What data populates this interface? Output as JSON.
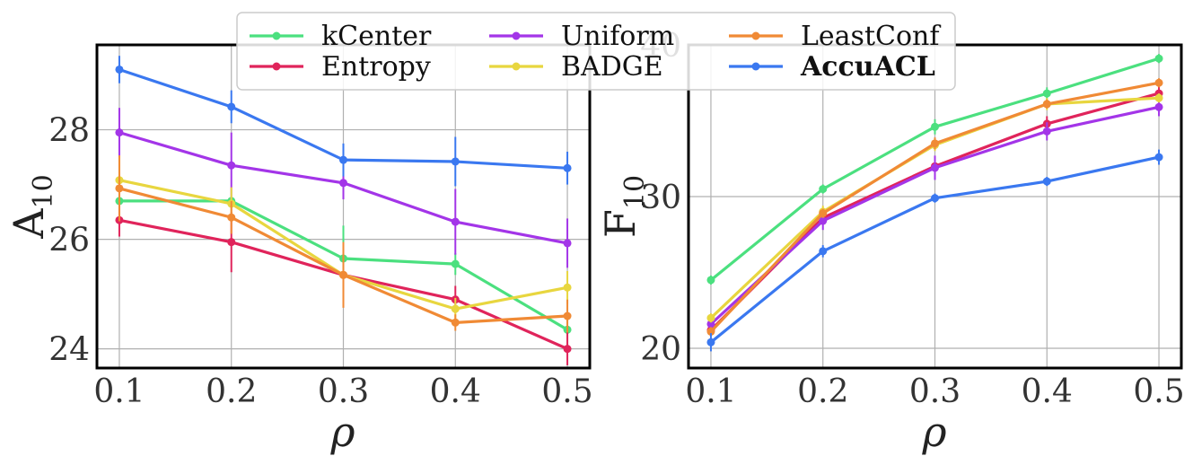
{
  "legend": {
    "entries": [
      {
        "name": "kCenter",
        "color": "#4be07f",
        "bold": false
      },
      {
        "name": "Entropy",
        "color": "#e0245b",
        "bold": false
      },
      {
        "name": "Uniform",
        "color": "#a335e8",
        "bold": false
      },
      {
        "name": "BADGE",
        "color": "#e8d63f",
        "bold": false
      },
      {
        "name": "LeastConf",
        "color": "#f08a35",
        "bold": false
      },
      {
        "name": "AccuACL",
        "color": "#3a78f0",
        "bold": true
      }
    ]
  },
  "chart_data": [
    {
      "type": "line",
      "title": "",
      "ylabel_main": "A",
      "ylabel_sub": "10",
      "xlabel": "ρ",
      "x": [
        0.1,
        0.2,
        0.3,
        0.4,
        0.5
      ],
      "x_tick_labels": [
        "0.1",
        "0.2",
        "0.3",
        "0.4",
        "0.5"
      ],
      "xlim": [
        0.08,
        0.52
      ],
      "ylim": [
        23.65,
        29.55
      ],
      "y_ticks": [
        24,
        26,
        28
      ],
      "y_tick_labels": [
        "24",
        "26",
        "28"
      ],
      "grid": true,
      "series": [
        {
          "name": "kCenter",
          "color": "#4be07f",
          "values": [
            26.7,
            26.7,
            25.65,
            25.55,
            24.35
          ],
          "errors": [
            0.0,
            0.0,
            0.6,
            0.2,
            0.3
          ]
        },
        {
          "name": "Entropy",
          "color": "#e0245b",
          "values": [
            26.35,
            25.95,
            25.35,
            24.9,
            24.0
          ],
          "errors": [
            0.3,
            0.55,
            0.3,
            0.25,
            0.3
          ]
        },
        {
          "name": "Uniform",
          "color": "#a335e8",
          "values": [
            27.95,
            27.35,
            27.03,
            26.32,
            25.93
          ],
          "errors": [
            0.45,
            0.6,
            0.3,
            0.6,
            0.45
          ]
        },
        {
          "name": "BADGE",
          "color": "#e8d63f",
          "values": [
            27.08,
            26.65,
            25.35,
            24.73,
            25.12
          ],
          "errors": [
            0.45,
            0.3,
            0.45,
            0.2,
            0.3
          ]
        },
        {
          "name": "LeastConf",
          "color": "#f08a35",
          "values": [
            26.93,
            26.4,
            25.35,
            24.48,
            24.6
          ],
          "errors": [
            0.6,
            0.3,
            0.6,
            0.15,
            0.3
          ]
        },
        {
          "name": "AccuACL",
          "color": "#3a78f0",
          "values": [
            29.1,
            28.42,
            27.45,
            27.42,
            27.3
          ],
          "errors": [
            0.25,
            0.3,
            0.3,
            0.45,
            0.3
          ]
        }
      ]
    },
    {
      "type": "line",
      "title": "",
      "ylabel_main": "F",
      "ylabel_sub": "10",
      "xlabel": "ρ",
      "x": [
        0.1,
        0.2,
        0.3,
        0.4,
        0.5
      ],
      "x_tick_labels": [
        "0.1",
        "0.2",
        "0.3",
        "0.4",
        "0.5"
      ],
      "xlim": [
        0.08,
        0.52
      ],
      "ylim": [
        18.7,
        40.0
      ],
      "y_ticks": [
        20,
        30,
        40
      ],
      "y_tick_labels": [
        "20",
        "30",
        "40"
      ],
      "grid": true,
      "series": [
        {
          "name": "kCenter",
          "color": "#4be07f",
          "values": [
            24.5,
            30.5,
            34.6,
            36.8,
            39.1
          ],
          "errors": [
            0.3,
            0.3,
            0.5,
            0.4,
            0.3
          ]
        },
        {
          "name": "Entropy",
          "color": "#e0245b",
          "values": [
            21.2,
            28.6,
            32.0,
            34.8,
            36.8
          ],
          "errors": [
            0.4,
            0.4,
            0.5,
            0.5,
            0.5
          ]
        },
        {
          "name": "Uniform",
          "color": "#a335e8",
          "values": [
            21.6,
            28.4,
            31.9,
            34.3,
            35.9
          ],
          "errors": [
            0.4,
            0.6,
            0.8,
            0.6,
            0.6
          ]
        },
        {
          "name": "BADGE",
          "color": "#e8d63f",
          "values": [
            22.0,
            29.0,
            33.4,
            36.1,
            36.5
          ],
          "errors": [
            0.3,
            0.4,
            0.4,
            0.4,
            0.3
          ]
        },
        {
          "name": "LeastConf",
          "color": "#f08a35",
          "values": [
            21.1,
            28.9,
            33.5,
            36.1,
            37.5
          ],
          "errors": [
            0.3,
            0.3,
            0.4,
            0.3,
            0.3
          ]
        },
        {
          "name": "AccuACL",
          "color": "#3a78f0",
          "values": [
            20.4,
            26.4,
            29.9,
            31.0,
            32.6
          ],
          "errors": [
            0.6,
            0.4,
            0.3,
            0.3,
            0.5
          ]
        }
      ]
    }
  ]
}
